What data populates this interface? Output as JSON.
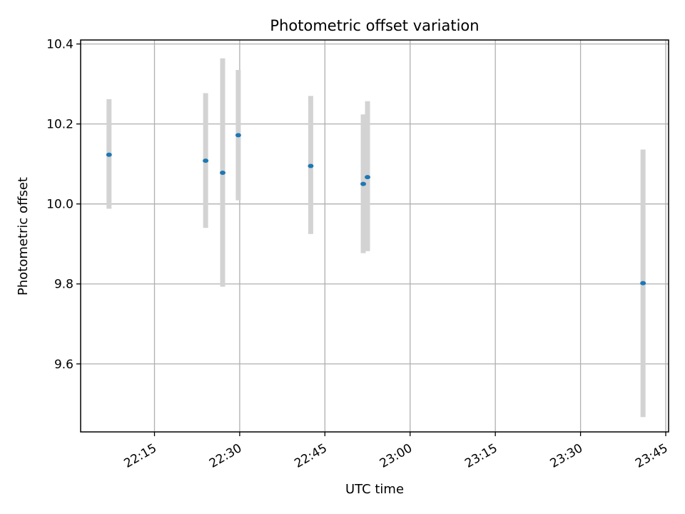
{
  "chart_data": {
    "type": "scatter",
    "title": "Photometric offset variation",
    "xlabel": "UTC time",
    "ylabel": "Photometric offset",
    "xlim": [
      "22:02",
      "23:45:30"
    ],
    "ylim": [
      9.43,
      10.41
    ],
    "grid": true,
    "x_ticks": [
      "22:15",
      "22:30",
      "22:45",
      "23:00",
      "23:15",
      "23:30",
      "23:45"
    ],
    "y_ticks": [
      "9.6",
      "9.8",
      "10.0",
      "10.2",
      "10.4"
    ],
    "marker_color": "#1f77b4",
    "errorbar_color": "#d3d3d3",
    "points": [
      {
        "x": "22:07",
        "y": 10.123,
        "yerr_low": 9.988,
        "yerr_high": 10.262
      },
      {
        "x": "22:24",
        "y": 10.108,
        "yerr_low": 9.94,
        "yerr_high": 10.277
      },
      {
        "x": "22:27",
        "y": 10.078,
        "yerr_low": 9.793,
        "yerr_high": 10.364
      },
      {
        "x": "22:29:45",
        "y": 10.172,
        "yerr_low": 10.009,
        "yerr_high": 10.335
      },
      {
        "x": "22:42:30",
        "y": 10.095,
        "yerr_low": 9.925,
        "yerr_high": 10.27
      },
      {
        "x": "22:51:45",
        "y": 10.05,
        "yerr_low": 9.877,
        "yerr_high": 10.224
      },
      {
        "x": "22:52:30",
        "y": 10.067,
        "yerr_low": 9.882,
        "yerr_high": 10.257
      },
      {
        "x": "23:41",
        "y": 9.802,
        "yerr_low": 9.467,
        "yerr_high": 10.136
      }
    ]
  }
}
